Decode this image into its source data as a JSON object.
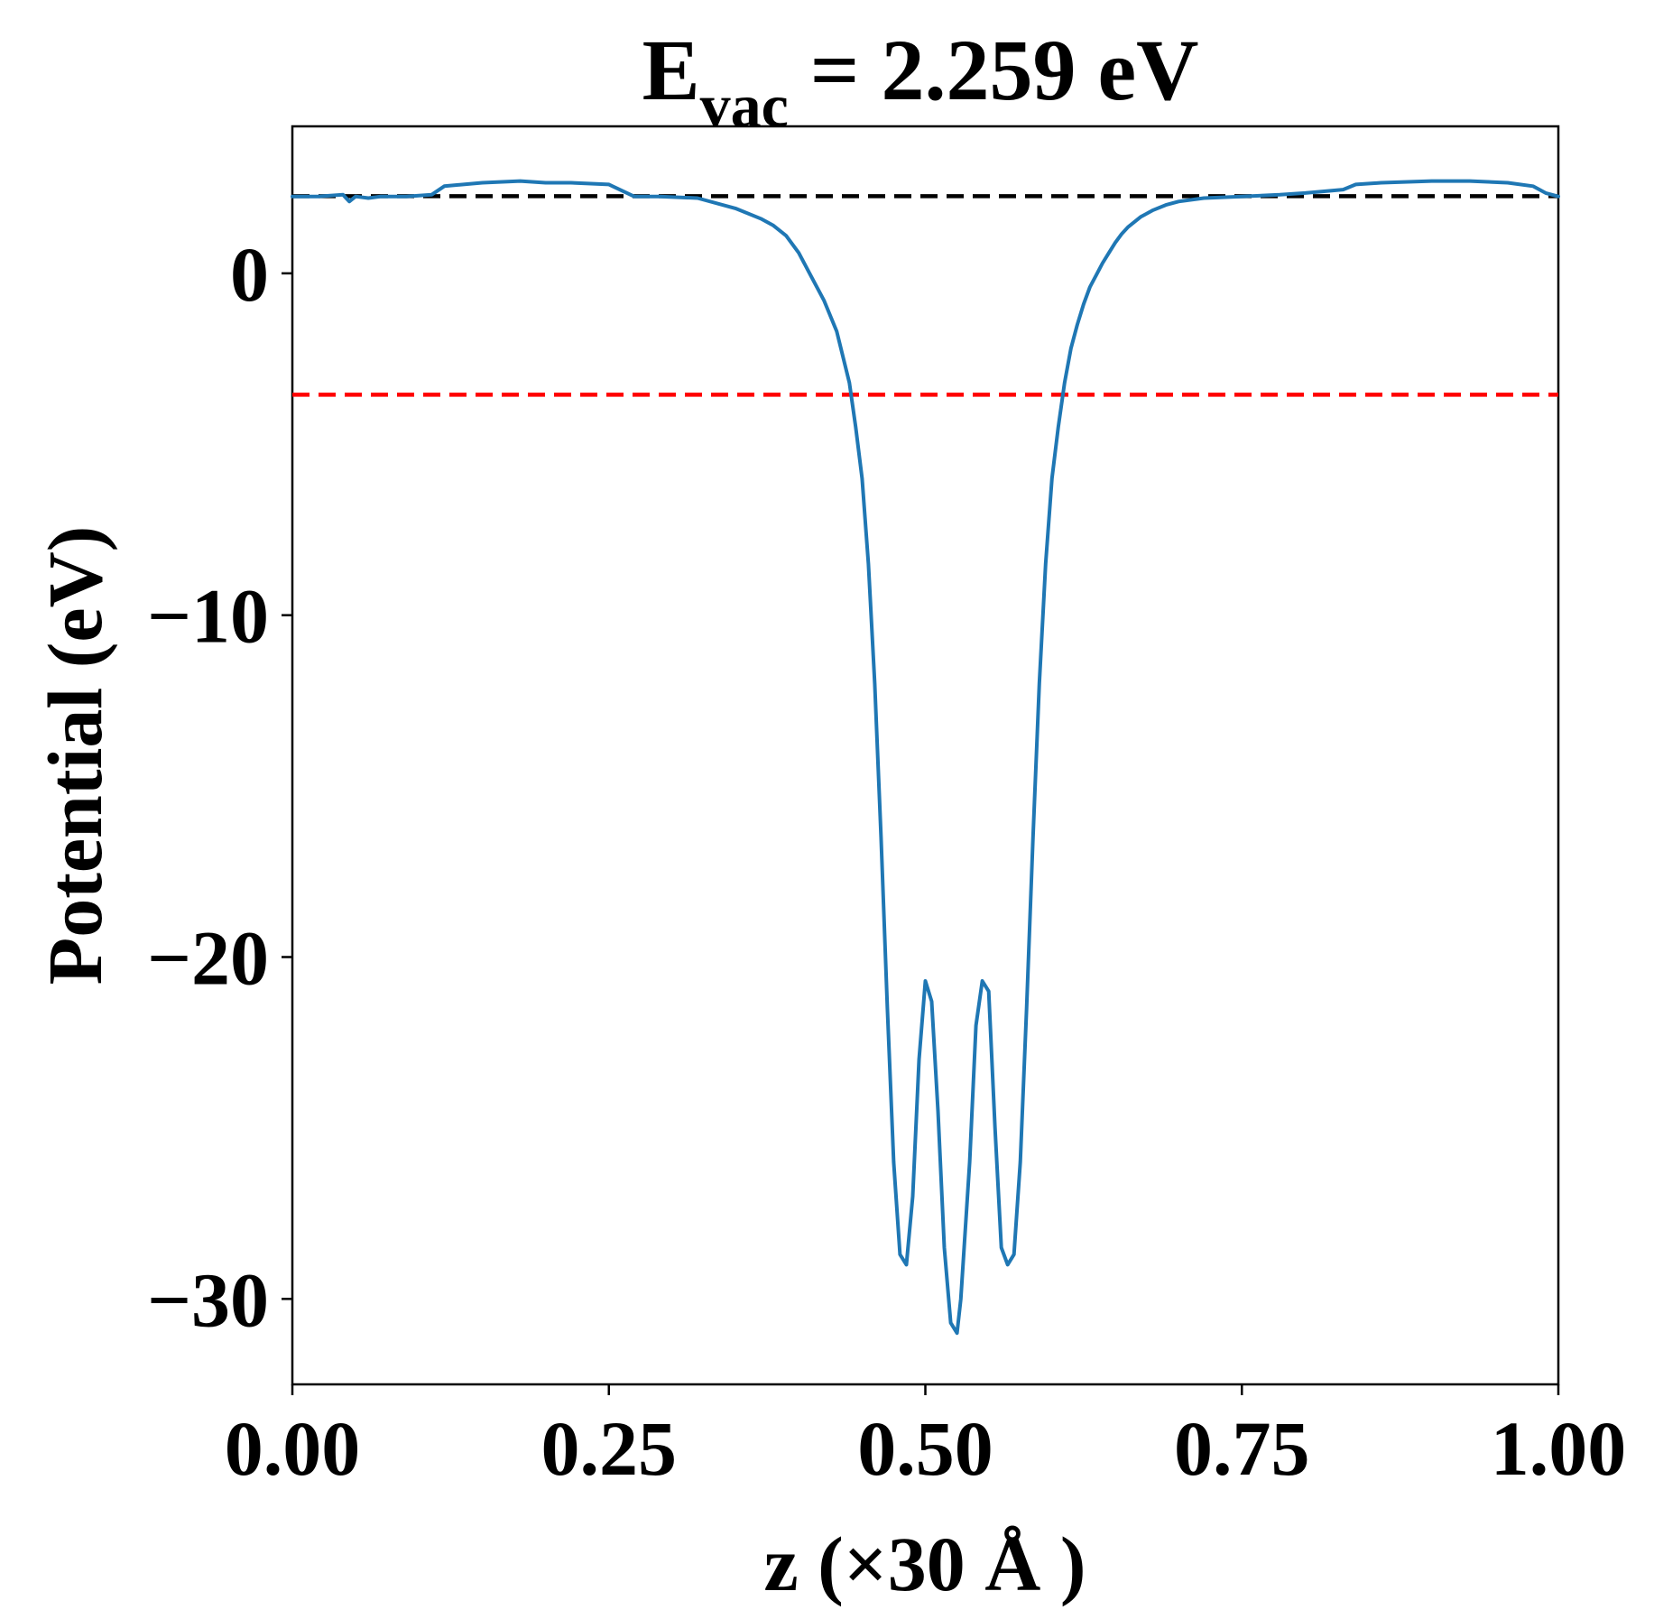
{
  "chart_data": {
    "type": "line",
    "title": {
      "prefix": "E",
      "subscript": "vac",
      "suffix": " = 2.259 eV"
    },
    "xlabel": "z (×30 Å )",
    "ylabel": "Potential (eV)",
    "xlim": [
      0,
      1
    ],
    "ylim": [
      -32.5,
      4.3
    ],
    "x_ticks": [
      0,
      0.25,
      0.5,
      0.75,
      1
    ],
    "x_tick_labels": [
      "0.00",
      "0.25",
      "0.50",
      "0.75",
      "1.00"
    ],
    "y_ticks": [
      0,
      -10,
      -20,
      -30
    ],
    "y_tick_labels": [
      "0",
      "−10",
      "−20",
      "−30"
    ],
    "grid": false,
    "reference_lines": [
      {
        "y": 2.259,
        "color": "#000000",
        "style": "dashed"
      },
      {
        "y": -3.55,
        "color": "#ff0000",
        "style": "dashed"
      }
    ],
    "series": [
      {
        "color": "#1f77b4",
        "x": [
          0,
          0.02,
          0.04,
          0.045,
          0.05,
          0.06,
          0.07,
          0.09,
          0.11,
          0.12,
          0.15,
          0.18,
          0.2,
          0.22,
          0.25,
          0.27,
          0.29,
          0.32,
          0.35,
          0.37,
          0.38,
          0.39,
          0.4,
          0.41,
          0.42,
          0.43,
          0.44,
          0.445,
          0.45,
          0.455,
          0.46,
          0.465,
          0.47,
          0.475,
          0.48,
          0.485,
          0.49,
          0.495,
          0.5,
          0.505,
          0.51,
          0.515,
          0.52,
          0.525,
          0.528,
          0.535,
          0.54,
          0.545,
          0.55,
          0.555,
          0.56,
          0.565,
          0.57,
          0.575,
          0.58,
          0.585,
          0.59,
          0.595,
          0.6,
          0.605,
          0.61,
          0.615,
          0.62,
          0.625,
          0.63,
          0.635,
          0.64,
          0.645,
          0.65,
          0.655,
          0.66,
          0.665,
          0.67,
          0.68,
          0.69,
          0.7,
          0.72,
          0.75,
          0.78,
          0.8,
          0.83,
          0.84,
          0.86,
          0.9,
          0.93,
          0.96,
          0.98,
          0.99,
          1.0
        ],
        "y": [
          2.25,
          2.25,
          2.3,
          2.1,
          2.25,
          2.2,
          2.25,
          2.25,
          2.3,
          2.55,
          2.65,
          2.7,
          2.65,
          2.65,
          2.6,
          2.25,
          2.25,
          2.2,
          1.9,
          1.6,
          1.4,
          1.1,
          0.6,
          -0.1,
          -0.8,
          -1.7,
          -3.2,
          -4.5,
          -6.0,
          -8.5,
          -12.0,
          -16.5,
          -21.5,
          -26.0,
          -28.7,
          -29.0,
          -27.0,
          -23.0,
          -20.7,
          -21.3,
          -24.5,
          -28.5,
          -30.7,
          -31.0,
          -30.0,
          -26.0,
          -22.0,
          -20.7,
          -21.0,
          -25.0,
          -28.5,
          -29.0,
          -28.7,
          -26.0,
          -21.5,
          -16.5,
          -12.0,
          -8.5,
          -6.0,
          -4.5,
          -3.2,
          -2.2,
          -1.5,
          -0.9,
          -0.4,
          -0.05,
          0.3,
          0.6,
          0.9,
          1.15,
          1.35,
          1.5,
          1.65,
          1.85,
          2.0,
          2.1,
          2.2,
          2.25,
          2.3,
          2.35,
          2.45,
          2.6,
          2.65,
          2.7,
          2.7,
          2.65,
          2.55,
          2.35,
          2.25
        ]
      }
    ]
  }
}
